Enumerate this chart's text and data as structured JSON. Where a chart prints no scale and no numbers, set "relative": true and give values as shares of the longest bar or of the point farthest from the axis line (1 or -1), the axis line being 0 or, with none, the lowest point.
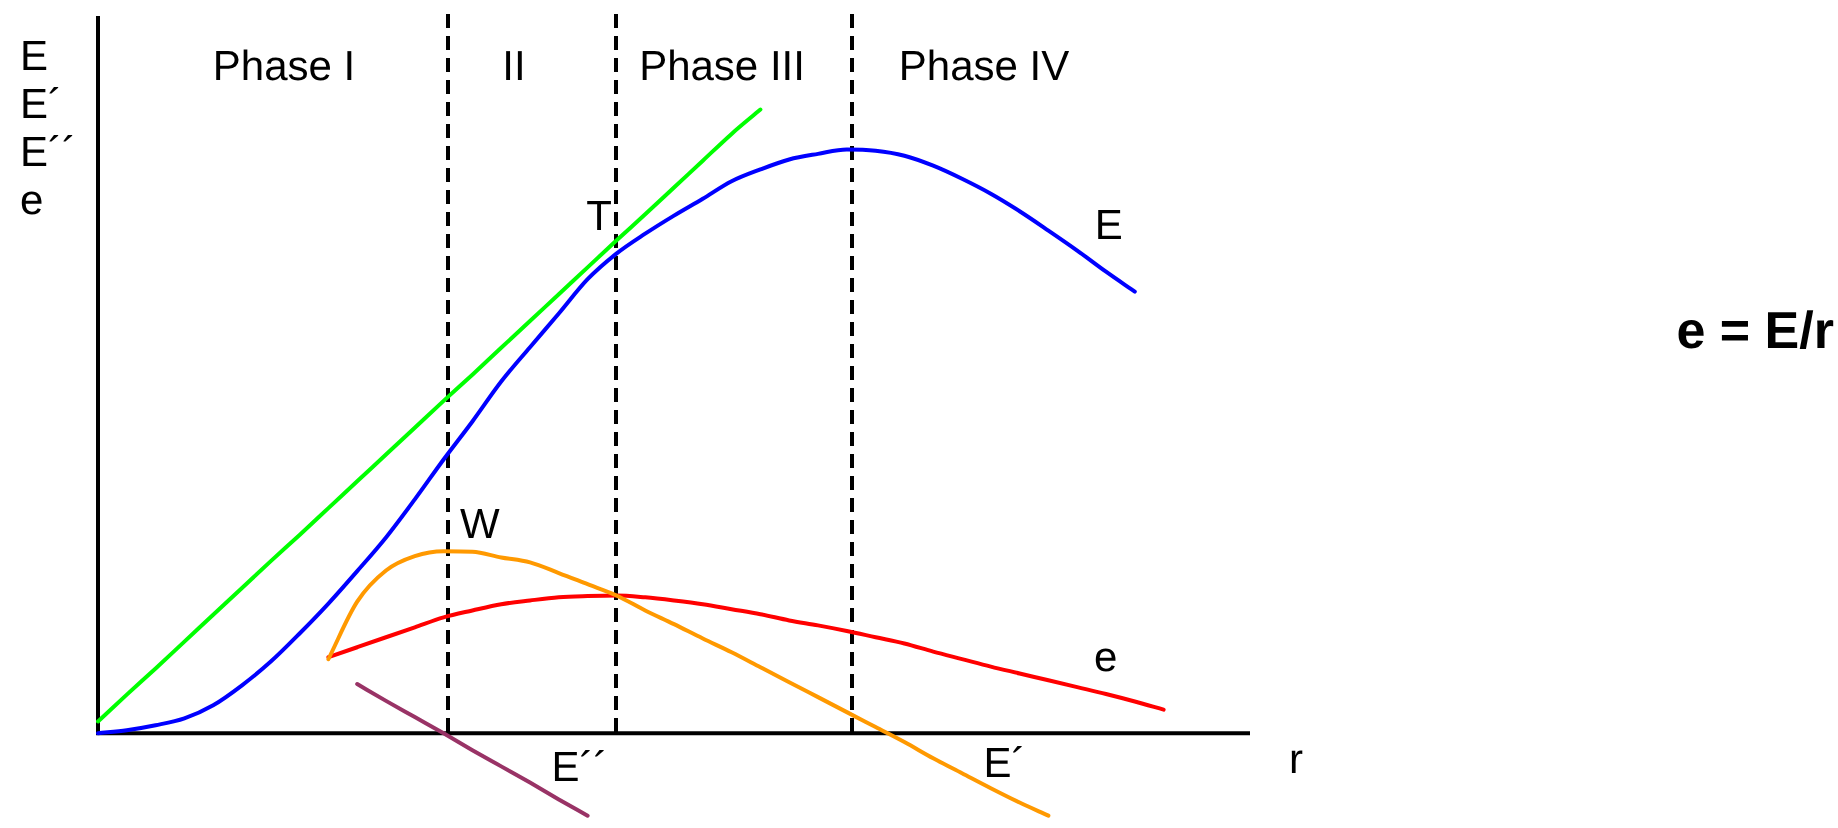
{
  "chart_data": {
    "type": "line",
    "ylabel": "E\nE´\nE´´\ne",
    "xlabel": "r",
    "relative": true,
    "legend": false,
    "marker": "none",
    "tick_labels": false,
    "categories": [
      null,
      null,
      null,
      null,
      null,
      null,
      null,
      null,
      null,
      null,
      null,
      null,
      null,
      null,
      null,
      null,
      null,
      null,
      null,
      null,
      null,
      null,
      null,
      null,
      null,
      null,
      null,
      null,
      null,
      null,
      null,
      null,
      null,
      null,
      null,
      null,
      null,
      null,
      null,
      null,
      null
    ],
    "series": [
      {
        "name": "E",
        "color": "#0000ff",
        "values": [
          0,
          0.005,
          0.013,
          0.024,
          0.045,
          0.077,
          0.115,
          0.16,
          0.208,
          0.26,
          0.314,
          0.375,
          0.439,
          0.5,
          0.564,
          0.619,
          0.673,
          0.728,
          0.769,
          0.801,
          0.83,
          0.857,
          0.885,
          0.904,
          0.92,
          0.929,
          0.936,
          0.934,
          0.926,
          0.91,
          0.889,
          0.865,
          0.837,
          0.806,
          0.774,
          0.74,
          0.708,
          null,
          null,
          null,
          null
        ]
      },
      {
        "color": "#00ff00",
        "values": [
          0.019,
          0.062,
          0.104,
          0.147,
          0.19,
          0.233,
          0.276,
          0.318,
          0.361,
          0.404,
          0.447,
          0.49,
          0.533,
          0.575,
          0.618,
          0.661,
          0.704,
          0.747,
          0.79,
          0.832,
          0.875,
          0.918,
          0.961,
          1,
          null,
          null,
          null,
          null,
          null,
          null,
          null,
          null,
          null,
          null,
          null,
          null,
          null,
          null,
          null,
          null,
          null
        ]
      },
      {
        "name": "E´",
        "color": "#ff9900",
        "values": [
          null,
          null,
          null,
          null,
          null,
          null,
          null,
          null,
          0.119,
          0.211,
          0.261,
          0.284,
          0.292,
          0.291,
          0.282,
          0.274,
          0.257,
          0.239,
          0.221,
          0.197,
          0.175,
          0.152,
          0.13,
          0.106,
          0.082,
          0.058,
          0.034,
          0.01,
          -0.014,
          -0.04,
          -0.064,
          -0.088,
          -0.111,
          -0.132,
          null,
          null,
          null,
          null,
          null,
          null,
          null
        ]
      },
      {
        "name": "e",
        "color": "#ff0000",
        "values": [
          null,
          null,
          null,
          null,
          null,
          null,
          null,
          null,
          0.122,
          0.138,
          0.154,
          0.17,
          0.186,
          0.197,
          0.207,
          0.213,
          0.218,
          0.22,
          0.221,
          0.218,
          0.213,
          0.207,
          0.199,
          0.191,
          0.181,
          0.173,
          0.164,
          0.154,
          0.144,
          0.131,
          0.119,
          0.107,
          0.096,
          0.085,
          0.074,
          0.063,
          0.051,
          0.038,
          null,
          null,
          null
        ]
      },
      {
        "name": "E´´",
        "color": "#993366",
        "values": [
          null,
          null,
          null,
          null,
          null,
          null,
          null,
          null,
          null,
          0.079,
          0.052,
          0.026,
          0,
          -0.027,
          -0.053,
          -0.079,
          -0.106,
          -0.132,
          null,
          null,
          null,
          null,
          null,
          null,
          null,
          null,
          null,
          null,
          null,
          null,
          null,
          null,
          null,
          null,
          null,
          null,
          null,
          null,
          null,
          null,
          null
        ]
      }
    ],
    "annotations": [
      "Phase I",
      "II",
      "Phase III",
      "Phase IV",
      "T",
      "W",
      "e = E/r"
    ]
  }
}
